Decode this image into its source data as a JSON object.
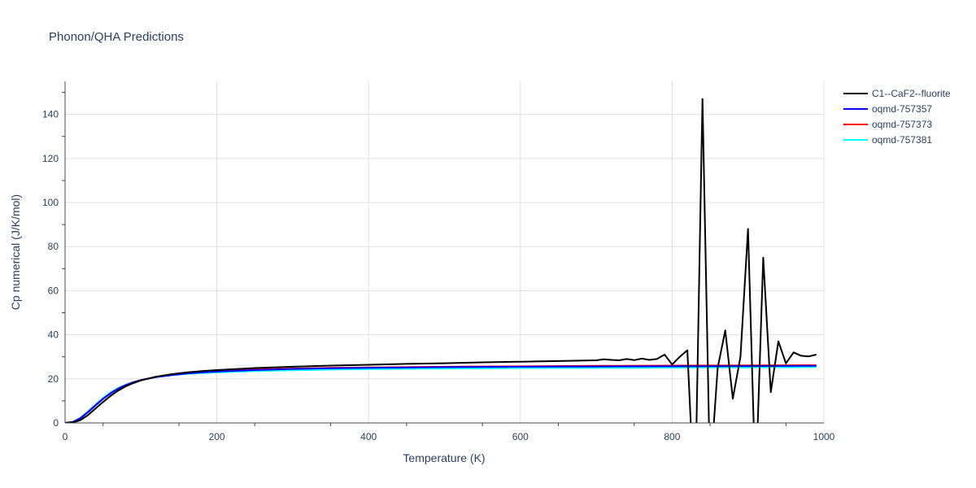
{
  "chart_data": {
    "type": "line",
    "title": "Phonon/QHA Predictions",
    "xlabel": "Temperature (K)",
    "ylabel": "Cp numerical (J/K/mol)",
    "xlim": [
      0,
      1000
    ],
    "ylim": [
      0,
      155
    ],
    "xticks": [
      0,
      200,
      400,
      600,
      800,
      1000
    ],
    "yticks": [
      0,
      20,
      40,
      60,
      80,
      100,
      120,
      140
    ],
    "grid": true,
    "legend_position": "top-right",
    "series": [
      {
        "name": "C1--CaF2--fluorite",
        "color": "#000000",
        "x": [
          0,
          10,
          20,
          30,
          40,
          50,
          60,
          70,
          80,
          90,
          100,
          120,
          140,
          160,
          180,
          200,
          250,
          300,
          350,
          400,
          450,
          500,
          550,
          600,
          650,
          700,
          710,
          720,
          730,
          740,
          750,
          760,
          770,
          780,
          790,
          800,
          810,
          820,
          830,
          840,
          850,
          860,
          870,
          880,
          890,
          900,
          910,
          920,
          930,
          940,
          950,
          960,
          970,
          980,
          990
        ],
        "y": [
          0,
          0.2,
          1.2,
          3.5,
          6.5,
          9.5,
          12.3,
          14.7,
          16.6,
          18.1,
          19.3,
          21.0,
          22.1,
          22.9,
          23.5,
          24.0,
          24.9,
          25.5,
          26.0,
          26.4,
          26.8,
          27.1,
          27.5,
          27.8,
          28.1,
          28.4,
          28.9,
          28.6,
          28.4,
          29.0,
          28.5,
          29.2,
          28.6,
          29.0,
          31.0,
          26.5,
          30.0,
          33.0,
          -40,
          147,
          -25,
          25,
          42,
          11,
          30,
          88,
          -30,
          75,
          14,
          37,
          27,
          32,
          30.5,
          30.2,
          31.0
        ]
      },
      {
        "name": "oqmd-757357",
        "color": "#0000ff",
        "x": [
          0,
          10,
          20,
          30,
          40,
          50,
          60,
          70,
          80,
          90,
          100,
          120,
          140,
          160,
          180,
          200,
          250,
          300,
          350,
          400,
          500,
          600,
          700,
          800,
          900,
          990
        ],
        "y": [
          0,
          0.4,
          2.1,
          4.8,
          7.9,
          10.9,
          13.4,
          15.5,
          17.1,
          18.4,
          19.4,
          20.8,
          21.7,
          22.4,
          22.9,
          23.3,
          24.0,
          24.5,
          24.8,
          25.0,
          25.3,
          25.5,
          25.6,
          25.7,
          25.8,
          25.9
        ]
      },
      {
        "name": "oqmd-757373",
        "color": "#ff0000",
        "x": [
          0,
          10,
          20,
          30,
          40,
          50,
          60,
          70,
          80,
          90,
          100,
          120,
          140,
          160,
          180,
          200,
          250,
          300,
          350,
          400,
          500,
          600,
          700,
          800,
          900,
          990
        ],
        "y": [
          0,
          0.4,
          2.1,
          4.9,
          8.0,
          11.0,
          13.5,
          15.6,
          17.2,
          18.5,
          19.5,
          20.9,
          21.8,
          22.5,
          23.0,
          23.4,
          24.2,
          24.7,
          25.0,
          25.2,
          25.5,
          25.7,
          25.9,
          26.0,
          26.1,
          26.2
        ]
      },
      {
        "name": "oqmd-757381",
        "color": "#00ffff",
        "x": [
          0,
          10,
          20,
          30,
          40,
          50,
          60,
          70,
          80,
          90,
          100,
          120,
          140,
          160,
          180,
          200,
          250,
          300,
          350,
          400,
          500,
          600,
          700,
          800,
          900,
          990
        ],
        "y": [
          0,
          0.4,
          2.3,
          5.2,
          8.4,
          11.4,
          13.9,
          15.9,
          17.4,
          18.6,
          19.5,
          20.8,
          21.6,
          22.2,
          22.6,
          22.9,
          23.5,
          23.9,
          24.2,
          24.4,
          24.7,
          24.9,
          25.0,
          25.1,
          25.2,
          25.3
        ]
      }
    ]
  }
}
